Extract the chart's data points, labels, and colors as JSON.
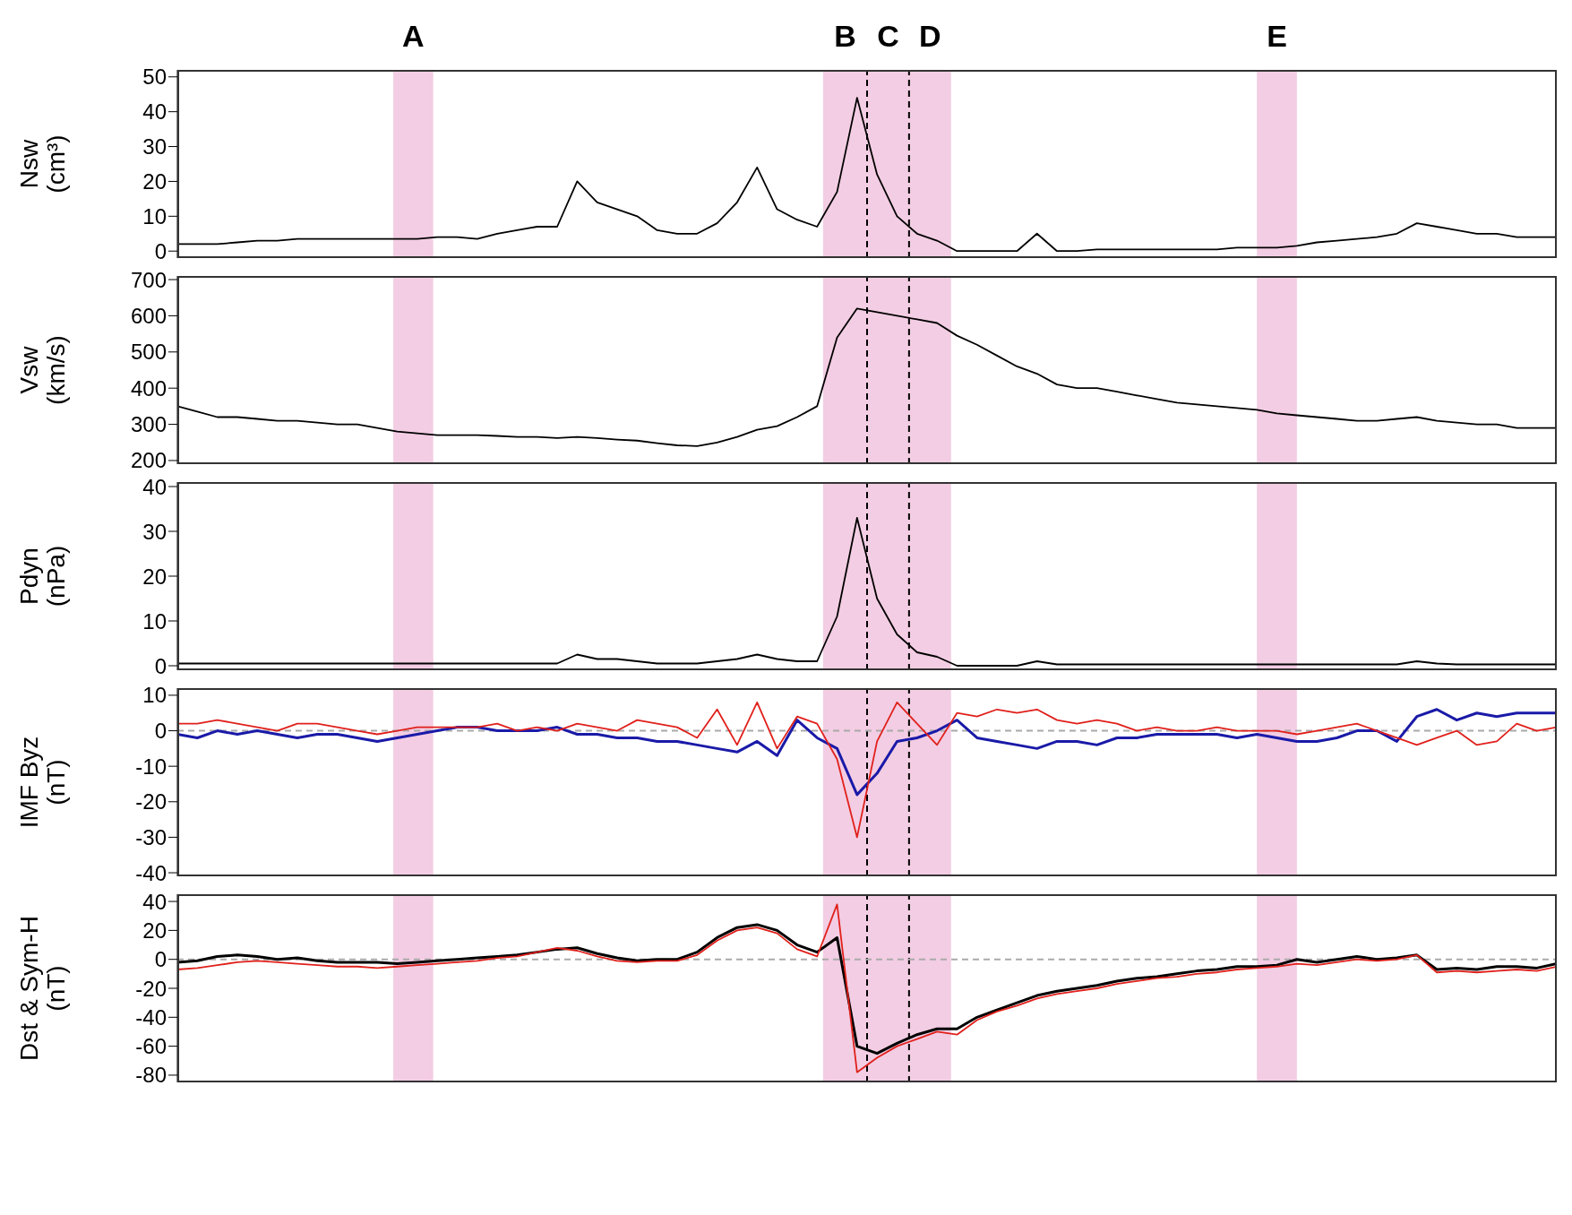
{
  "chart_data": [
    {
      "type": "line",
      "ylabel": "Nsw (cm³)",
      "tick_labels": "y",
      "ylim": [
        -2,
        52
      ],
      "yticks": [
        0,
        10,
        20,
        30,
        40,
        50
      ],
      "annotations": [
        "A",
        "B",
        "C",
        "D",
        "E"
      ],
      "categories": [
        null,
        null,
        null,
        null,
        null,
        null,
        null,
        null,
        null,
        null,
        null,
        null,
        null,
        null,
        null,
        null,
        null,
        null,
        null,
        null,
        null,
        null,
        null,
        null,
        null,
        null,
        null,
        null,
        null,
        null,
        null,
        null,
        null,
        null,
        null,
        null,
        null,
        null,
        null,
        null,
        null,
        null,
        null,
        null,
        null,
        null,
        null,
        null,
        null,
        null,
        null,
        null,
        null,
        null,
        null,
        null,
        null,
        null,
        null,
        null,
        null,
        null,
        null,
        null,
        null,
        null,
        null,
        null,
        null,
        null
      ],
      "series": [
        {
          "color": "#000000",
          "values": [
            2,
            2,
            2,
            2.5,
            3,
            3,
            3.5,
            3.5,
            3.5,
            3.5,
            3.5,
            3.5,
            3.5,
            4,
            4,
            3.5,
            5,
            6,
            7,
            7,
            20,
            14,
            12,
            10,
            6,
            5,
            5,
            8,
            14,
            24,
            12,
            9,
            7,
            17,
            44,
            22,
            10,
            5,
            3,
            0,
            0,
            0,
            0,
            5,
            0,
            0,
            0.5,
            0.5,
            0.5,
            0.5,
            0.5,
            0.5,
            0.5,
            1,
            1,
            1,
            1.5,
            2.5,
            3,
            3.5,
            4,
            5,
            8,
            7,
            6,
            5,
            5,
            4,
            4,
            4
          ]
        }
      ]
    },
    {
      "type": "line",
      "ylabel": "Vsw (km/s)",
      "tick_labels": "y",
      "ylim": [
        190,
        710
      ],
      "yticks": [
        200,
        300,
        400,
        500,
        600,
        700
      ],
      "categories": [
        null,
        null,
        null,
        null,
        null,
        null,
        null,
        null,
        null,
        null,
        null,
        null,
        null,
        null,
        null,
        null,
        null,
        null,
        null,
        null,
        null,
        null,
        null,
        null,
        null,
        null,
        null,
        null,
        null,
        null,
        null,
        null,
        null,
        null,
        null,
        null,
        null,
        null,
        null,
        null,
        null,
        null,
        null,
        null,
        null,
        null,
        null,
        null,
        null,
        null,
        null,
        null,
        null,
        null,
        null,
        null,
        null,
        null,
        null,
        null,
        null,
        null,
        null,
        null,
        null,
        null,
        null,
        null,
        null,
        null
      ],
      "series": [
        {
          "color": "#000000",
          "values": [
            350,
            335,
            320,
            320,
            315,
            310,
            310,
            305,
            300,
            300,
            290,
            280,
            275,
            270,
            270,
            270,
            268,
            265,
            265,
            262,
            265,
            262,
            258,
            255,
            248,
            242,
            240,
            250,
            265,
            285,
            295,
            320,
            350,
            540,
            620,
            610,
            600,
            590,
            580,
            545,
            520,
            490,
            460,
            440,
            410,
            400,
            400,
            390,
            380,
            370,
            360,
            355,
            350,
            345,
            340,
            330,
            325,
            320,
            315,
            310,
            310,
            315,
            320,
            310,
            305,
            300,
            300,
            290,
            290,
            290
          ]
        }
      ]
    },
    {
      "type": "line",
      "ylabel": "Pdyn (nPa)",
      "tick_labels": "y",
      "ylim": [
        -1,
        41
      ],
      "yticks": [
        0,
        10,
        20,
        30,
        40
      ],
      "categories": [
        null,
        null,
        null,
        null,
        null,
        null,
        null,
        null,
        null,
        null,
        null,
        null,
        null,
        null,
        null,
        null,
        null,
        null,
        null,
        null,
        null,
        null,
        null,
        null,
        null,
        null,
        null,
        null,
        null,
        null,
        null,
        null,
        null,
        null,
        null,
        null,
        null,
        null,
        null,
        null,
        null,
        null,
        null,
        null,
        null,
        null,
        null,
        null,
        null,
        null,
        null,
        null,
        null,
        null,
        null,
        null,
        null,
        null,
        null,
        null,
        null,
        null,
        null,
        null,
        null,
        null,
        null,
        null,
        null,
        null
      ],
      "series": [
        {
          "color": "#000000",
          "values": [
            0.5,
            0.5,
            0.5,
            0.5,
            0.5,
            0.5,
            0.5,
            0.5,
            0.5,
            0.5,
            0.5,
            0.5,
            0.5,
            0.5,
            0.5,
            0.5,
            0.5,
            0.5,
            0.5,
            0.5,
            2.5,
            1.5,
            1.5,
            1,
            0.5,
            0.5,
            0.5,
            1,
            1.5,
            2.5,
            1.5,
            1,
            1,
            11,
            33,
            15,
            7,
            3,
            2,
            0,
            0,
            0,
            0,
            1,
            0.3,
            0.3,
            0.3,
            0.3,
            0.3,
            0.3,
            0.3,
            0.3,
            0.3,
            0.3,
            0.3,
            0.3,
            0.3,
            0.3,
            0.3,
            0.3,
            0.3,
            0.3,
            1,
            0.5,
            0.3,
            0.3,
            0.3,
            0.3,
            0.3,
            0.3
          ]
        }
      ]
    },
    {
      "type": "line",
      "ylabel": "IMF Byz (nT)",
      "tick_labels": "y",
      "ylim": [
        -41,
        12
      ],
      "yticks": [
        -40,
        -30,
        -20,
        -10,
        0,
        10
      ],
      "categories": [
        null,
        null,
        null,
        null,
        null,
        null,
        null,
        null,
        null,
        null,
        null,
        null,
        null,
        null,
        null,
        null,
        null,
        null,
        null,
        null,
        null,
        null,
        null,
        null,
        null,
        null,
        null,
        null,
        null,
        null,
        null,
        null,
        null,
        null,
        null,
        null,
        null,
        null,
        null,
        null,
        null,
        null,
        null,
        null,
        null,
        null,
        null,
        null,
        null,
        null,
        null,
        null,
        null,
        null,
        null,
        null,
        null,
        null,
        null,
        null,
        null,
        null,
        null,
        null,
        null,
        null,
        null,
        null,
        null,
        null
      ],
      "series": [
        {
          "color": "#1a1aa8",
          "values": [
            -1,
            -2,
            0,
            -1,
            0,
            -1,
            -2,
            -1,
            -1,
            -2,
            -3,
            -2,
            -1,
            0,
            1,
            1,
            0,
            0,
            0,
            1,
            -1,
            -1,
            -2,
            -2,
            -3,
            -3,
            -4,
            -5,
            -6,
            -3,
            -7,
            3,
            -2,
            -5,
            -18,
            -12,
            -3,
            -2,
            0,
            3,
            -2,
            -3,
            -4,
            -5,
            -3,
            -3,
            -4,
            -2,
            -2,
            -1,
            -1,
            -1,
            -1,
            -2,
            -1,
            -2,
            -3,
            -3,
            -2,
            0,
            0,
            -3,
            4,
            6,
            3,
            5,
            4,
            5,
            5,
            5
          ]
        },
        {
          "color": "#e0201b",
          "values": [
            2,
            2,
            3,
            2,
            1,
            0,
            2,
            2,
            1,
            0,
            -1,
            0,
            1,
            1,
            1,
            1,
            2,
            0,
            1,
            0,
            2,
            1,
            0,
            3,
            2,
            1,
            -2,
            6,
            -4,
            8,
            -5,
            4,
            2,
            -8,
            -30,
            -3,
            8,
            2,
            -4,
            5,
            4,
            6,
            5,
            6,
            3,
            2,
            3,
            2,
            0,
            1,
            0,
            0,
            1,
            0,
            0,
            0,
            -1,
            0,
            1,
            2,
            0,
            -2,
            -4,
            -2,
            0,
            -4,
            -3,
            2,
            0,
            1
          ]
        }
      ],
      "ref_lines": [
        {
          "axis": "y",
          "value": 0,
          "color": "#aaaaaa",
          "line_style": "dashed"
        }
      ]
    },
    {
      "type": "line",
      "ylabel": "Dst & Sym-H (nT)",
      "tick_labels": "y",
      "ylim": [
        -85,
        45
      ],
      "yticks": [
        -80,
        -60,
        -40,
        -20,
        0,
        20,
        40
      ],
      "categories": [
        null,
        null,
        null,
        null,
        null,
        null,
        null,
        null,
        null,
        null,
        null,
        null,
        null,
        null,
        null,
        null,
        null,
        null,
        null,
        null,
        null,
        null,
        null,
        null,
        null,
        null,
        null,
        null,
        null,
        null,
        null,
        null,
        null,
        null,
        null,
        null,
        null,
        null,
        null,
        null,
        null,
        null,
        null,
        null,
        null,
        null,
        null,
        null,
        null,
        null,
        null,
        null,
        null,
        null,
        null,
        null,
        null,
        null,
        null,
        null,
        null,
        null,
        null,
        null,
        null,
        null,
        null,
        null,
        null,
        null
      ],
      "series": [
        {
          "color": "#000000",
          "values": [
            -2,
            -1,
            2,
            3,
            2,
            0,
            1,
            -1,
            -2,
            -2,
            -2,
            -3,
            -2,
            -1,
            0,
            1,
            2,
            3,
            5,
            7,
            8,
            4,
            1,
            -1,
            0,
            0,
            5,
            15,
            22,
            24,
            20,
            10,
            5,
            15,
            -60,
            -65,
            -58,
            -52,
            -48,
            -48,
            -40,
            -35,
            -30,
            -25,
            -22,
            -20,
            -18,
            -15,
            -13,
            -12,
            -10,
            -8,
            -7,
            -5,
            -5,
            -4,
            0,
            -2,
            0,
            2,
            0,
            1,
            3,
            -7,
            -6,
            -7,
            -5,
            -5,
            -6,
            -3
          ]
        },
        {
          "color": "#e0201b",
          "values": [
            -7,
            -6,
            -4,
            -2,
            -1,
            -2,
            -3,
            -4,
            -5,
            -5,
            -6,
            -5,
            -4,
            -3,
            -2,
            -1,
            1,
            2,
            5,
            8,
            6,
            2,
            -1,
            -2,
            -1,
            -1,
            3,
            13,
            20,
            22,
            18,
            7,
            2,
            38,
            -78,
            -68,
            -60,
            -55,
            -50,
            -52,
            -42,
            -36,
            -32,
            -27,
            -24,
            -22,
            -20,
            -17,
            -15,
            -13,
            -12,
            -10,
            -9,
            -7,
            -6,
            -5,
            -3,
            -4,
            -2,
            0,
            -1,
            0,
            3,
            -9,
            -8,
            -9,
            -8,
            -7,
            -8,
            -5
          ]
        }
      ],
      "ref_lines": [
        {
          "axis": "y",
          "value": 0,
          "color": "#aaaaaa",
          "line_style": "dashed"
        }
      ]
    }
  ]
}
